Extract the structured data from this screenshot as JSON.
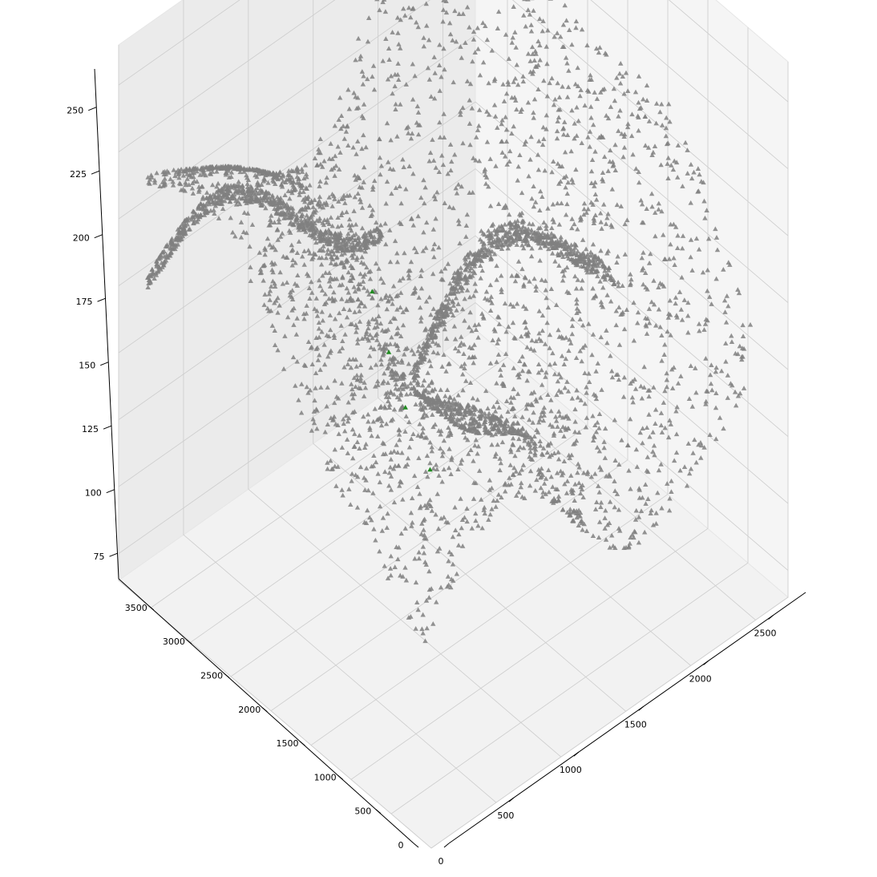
{
  "chart_data": {
    "type": "scatter3d",
    "title": "",
    "xlabel": "",
    "ylabel": "",
    "zlabel": "",
    "grid": true,
    "xlim": [
      0,
      2750
    ],
    "ylim": [
      0,
      3900
    ],
    "zlim": [
      65,
      265
    ],
    "x_ticks": [
      "0",
      "500",
      "1000",
      "1500",
      "2000",
      "2500"
    ],
    "y_ticks": [
      "0",
      "500",
      "1000",
      "1500",
      "2000",
      "2500",
      "3000",
      "3500"
    ],
    "z_ticks": [
      "75",
      "100",
      "125",
      "150",
      "175",
      "200",
      "225",
      "250"
    ],
    "marker": "triangle",
    "series": [
      {
        "color": "#808080",
        "description_points": 3500
      },
      {
        "color": "#228B22",
        "points": [
          {
            "x": 1800,
            "y": 3650,
            "z": 118
          },
          {
            "x": 1650,
            "y": 3200,
            "z": 112
          },
          {
            "x": 1500,
            "y": 2750,
            "z": 108
          },
          {
            "x": 1350,
            "y": 2200,
            "z": 104
          }
        ]
      }
    ]
  }
}
